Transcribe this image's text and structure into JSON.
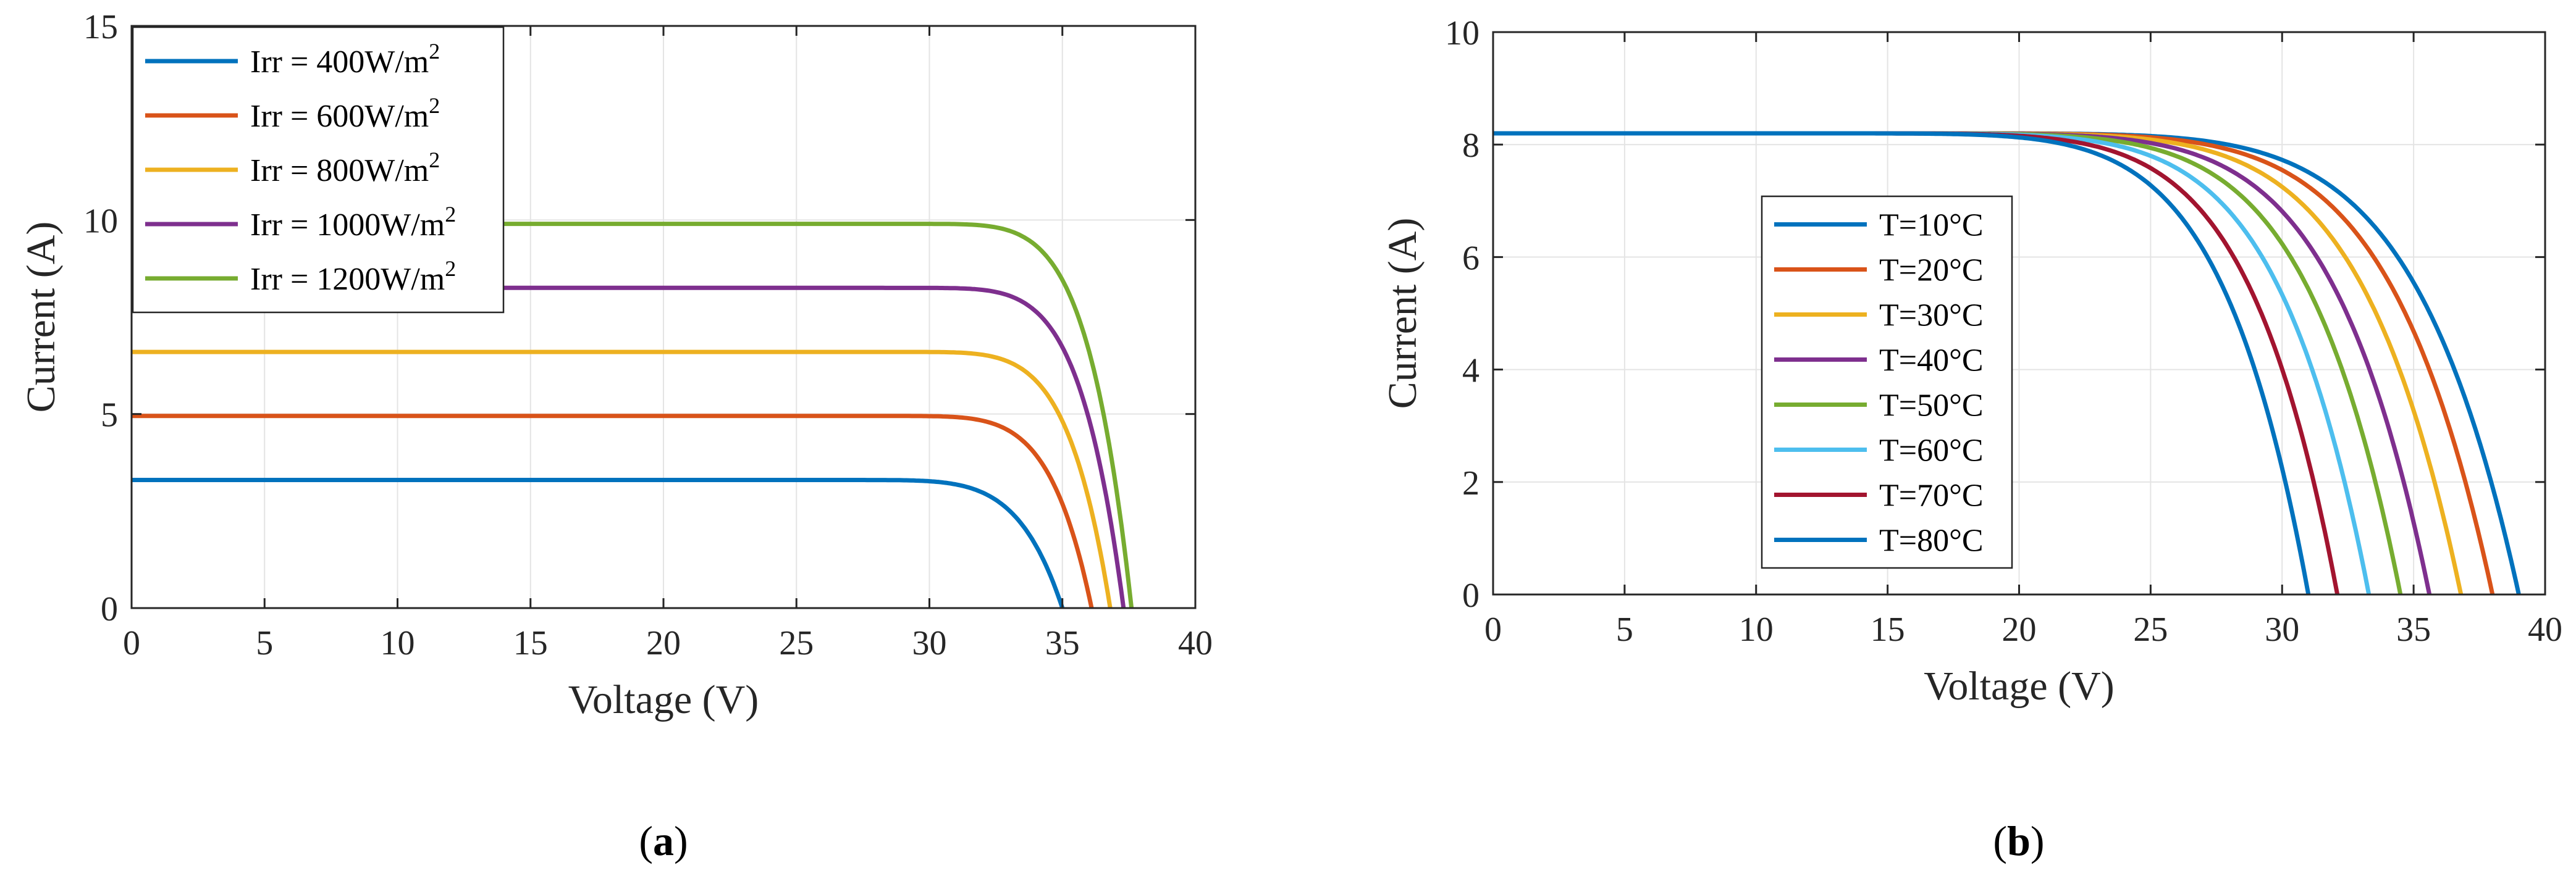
{
  "chart_data": [
    {
      "type": "line",
      "caption_letter": "a",
      "xlabel": "Voltage (V)",
      "ylabel": "Current (A)",
      "xlim": [
        0,
        40
      ],
      "ylim": [
        0,
        15
      ],
      "xticks": [
        0,
        5,
        10,
        15,
        20,
        25,
        30,
        35,
        40
      ],
      "yticks": [
        0,
        5,
        10,
        15
      ],
      "grid": true,
      "legend_position": "top-left",
      "series": [
        {
          "name": "Irr = 400W/m",
          "sup": "2",
          "color": "#0072BD",
          "isc": 3.3,
          "voc": 35.0,
          "knee_start": 26.0,
          "shape": 2.6
        },
        {
          "name": "Irr = 600W/m",
          "sup": "2",
          "color": "#D95319",
          "isc": 4.95,
          "voc": 36.1,
          "knee_start": 27.5,
          "shape": 2.6
        },
        {
          "name": "Irr = 800W/m",
          "sup": "2",
          "color": "#EDB120",
          "isc": 6.6,
          "voc": 36.8,
          "knee_start": 28.0,
          "shape": 2.6
        },
        {
          "name": "Irr = 1000W/m",
          "sup": "2",
          "color": "#7E2F8E",
          "isc": 8.25,
          "voc": 37.3,
          "knee_start": 28.3,
          "shape": 2.6
        },
        {
          "name": "Irr = 1200W/m",
          "sup": "2",
          "color": "#77AC30",
          "isc": 9.9,
          "voc": 37.6,
          "knee_start": 28.5,
          "shape": 2.6
        }
      ]
    },
    {
      "type": "line",
      "caption_letter": "b",
      "xlabel": "Voltage (V)",
      "ylabel": "Current (A)",
      "xlim": [
        0,
        40
      ],
      "ylim": [
        0,
        10
      ],
      "xticks": [
        0,
        5,
        10,
        15,
        20,
        25,
        30,
        35,
        40
      ],
      "yticks": [
        0,
        2,
        4,
        6,
        8,
        10
      ],
      "grid": true,
      "legend_position": "center-left",
      "series": [
        {
          "name": "T=10°C",
          "color": "#0072BD",
          "isc": 8.2,
          "voc": 39.0,
          "knee_start": 12.0,
          "shape": 3.2
        },
        {
          "name": "T=20°C",
          "color": "#D95319",
          "isc": 8.2,
          "voc": 38.0,
          "knee_start": 11.5,
          "shape": 3.2
        },
        {
          "name": "T=30°C",
          "color": "#EDB120",
          "isc": 8.2,
          "voc": 36.8,
          "knee_start": 11.0,
          "shape": 3.2
        },
        {
          "name": "T=40°C",
          "color": "#7E2F8E",
          "isc": 8.2,
          "voc": 35.6,
          "knee_start": 10.5,
          "shape": 3.2
        },
        {
          "name": "T=50°C",
          "color": "#77AC30",
          "isc": 8.2,
          "voc": 34.5,
          "knee_start": 10.0,
          "shape": 3.2
        },
        {
          "name": "T=60°C",
          "color": "#4DBEEE",
          "isc": 8.2,
          "voc": 33.3,
          "knee_start": 9.5,
          "shape": 3.2
        },
        {
          "name": "T=70°C",
          "color": "#A2142F",
          "isc": 8.2,
          "voc": 32.1,
          "knee_start": 9.0,
          "shape": 3.2
        },
        {
          "name": "T=80°C",
          "color": "#0072BD",
          "isc": 8.2,
          "voc": 31.0,
          "knee_start": 8.5,
          "shape": 3.2
        }
      ]
    }
  ]
}
